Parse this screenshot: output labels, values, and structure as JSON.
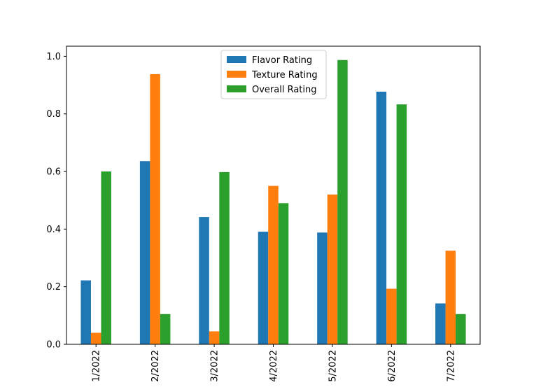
{
  "chart_data": {
    "type": "bar",
    "title": "",
    "xlabel": "",
    "ylabel": "",
    "categories": [
      "1/2022",
      "2/2022",
      "3/2022",
      "4/2022",
      "5/2022",
      "6/2022",
      "7/2022"
    ],
    "series": [
      {
        "name": "Flavor Rating",
        "color": "#1f77b4",
        "values": [
          0.222,
          0.636,
          0.442,
          0.391,
          0.388,
          0.877,
          0.142
        ]
      },
      {
        "name": "Texture Rating",
        "color": "#ff7f0e",
        "values": [
          0.04,
          0.938,
          0.045,
          0.55,
          0.52,
          0.193,
          0.325
        ]
      },
      {
        "name": "Overall Rating",
        "color": "#2ca02c",
        "values": [
          0.6,
          0.105,
          0.598,
          0.49,
          0.987,
          0.833,
          0.105
        ]
      }
    ],
    "ylim": [
      0,
      1.035
    ],
    "yticks": [
      "0.0",
      "0.2",
      "0.4",
      "0.6",
      "0.8",
      "1.0"
    ],
    "grid": false,
    "legend_position": "top-center"
  }
}
